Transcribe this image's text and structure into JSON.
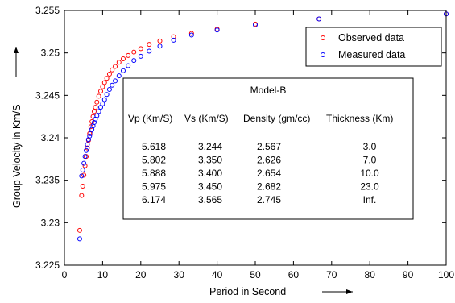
{
  "chart_data": {
    "type": "scatter",
    "xlabel": "Period in Second",
    "ylabel": "Group Velocity in Km/S",
    "xlim": [
      0,
      100
    ],
    "ylim": [
      3.225,
      3.255
    ],
    "xticks": [
      0,
      10,
      20,
      30,
      40,
      50,
      60,
      70,
      80,
      90,
      100
    ],
    "yticks": [
      3.225,
      3.23,
      3.235,
      3.24,
      3.245,
      3.25,
      3.255
    ],
    "xtick_labels": [
      "0",
      "10",
      "20",
      "30",
      "40",
      "50",
      "60",
      "70",
      "80",
      "90",
      "100"
    ],
    "ytick_labels": [
      "3.225",
      "3.23",
      "3.235",
      "3.24",
      "3.245",
      "3.25",
      "3.255"
    ],
    "grid": false,
    "legend_position": "top-right",
    "series": [
      {
        "name": "Observed data",
        "color": "#ff0000",
        "marker": "circle-open",
        "x": [
          4.0,
          4.5,
          4.8,
          5.1,
          5.4,
          5.7,
          6.0,
          6.3,
          6.6,
          6.9,
          7.2,
          7.5,
          7.8,
          8.1,
          8.5,
          9.0,
          9.5,
          10.0,
          10.5,
          11.1,
          11.8,
          12.5,
          13.3,
          14.3,
          15.4,
          16.7,
          18.2,
          20.0,
          22.2,
          25.0,
          28.6,
          33.3,
          40.0,
          50.0,
          66.7,
          100.0
        ],
        "y": [
          3.2291,
          3.2332,
          3.2343,
          3.2356,
          3.2367,
          3.2378,
          3.2388,
          3.2397,
          3.2405,
          3.2413,
          3.2419,
          3.2425,
          3.2431,
          3.2436,
          3.2442,
          3.2449,
          3.2455,
          3.246,
          3.2465,
          3.247,
          3.2475,
          3.248,
          3.2484,
          3.2489,
          3.2493,
          3.2497,
          3.2501,
          3.2505,
          3.251,
          3.2514,
          3.2519,
          3.2523,
          3.2528,
          3.2534,
          3.254,
          3.2546
        ]
      },
      {
        "name": "Measured data",
        "color": "#0000ff",
        "marker": "circle-open",
        "x": [
          4.0,
          4.5,
          4.8,
          5.1,
          5.4,
          5.7,
          6.0,
          6.3,
          6.6,
          6.9,
          7.2,
          7.5,
          7.8,
          8.1,
          8.5,
          9.0,
          9.5,
          10.0,
          10.5,
          11.1,
          11.8,
          12.5,
          13.3,
          14.3,
          15.4,
          16.7,
          18.2,
          20.0,
          22.2,
          25.0,
          28.6,
          33.3,
          40.0,
          50.0,
          66.7,
          100.0
        ],
        "y": [
          3.2281,
          3.2355,
          3.2362,
          3.237,
          3.2378,
          3.2385,
          3.2392,
          3.2398,
          3.2402,
          3.2405,
          3.241,
          3.2414,
          3.2418,
          3.2422,
          3.2426,
          3.2431,
          3.2436,
          3.244,
          3.2445,
          3.2451,
          3.2457,
          3.2462,
          3.2467,
          3.2473,
          3.2479,
          3.2485,
          3.2491,
          3.2496,
          3.2502,
          3.2508,
          3.2515,
          3.2521,
          3.2527,
          3.2533,
          3.254,
          3.2546
        ]
      }
    ],
    "table": {
      "title": "Model-B",
      "headers": [
        "Vp (Km/S)",
        "Vs (Km/S)",
        "Density (gm/cc)",
        "Thickness (Km)"
      ],
      "rows": [
        [
          "5.618",
          "3.244",
          "2.567",
          "3.0"
        ],
        [
          "5.802",
          "3.350",
          "2.626",
          "7.0"
        ],
        [
          "5.888",
          "3.400",
          "2.654",
          "10.0"
        ],
        [
          "5.975",
          "3.450",
          "2.682",
          "23.0"
        ],
        [
          "6.174",
          "3.565",
          "2.745",
          "Inf."
        ]
      ]
    }
  }
}
